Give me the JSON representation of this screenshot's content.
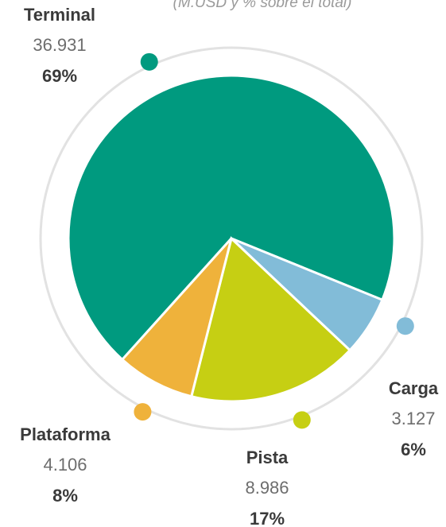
{
  "chart_data": {
    "type": "pie",
    "subtitle": "(M.USD y % sobre el total)",
    "categories": [
      "Terminal",
      "Carga",
      "Pista",
      "Plataforma"
    ],
    "values": [
      36931,
      3127,
      8986,
      4106
    ],
    "value_labels": [
      "36.931",
      "3.127",
      "8.986",
      "4.106"
    ],
    "percent_labels": [
      "69%",
      "6%",
      "17%",
      "8%"
    ],
    "colors": [
      "#009a7f",
      "#82bcd8",
      "#c6cf13",
      "#efb23b"
    ]
  }
}
